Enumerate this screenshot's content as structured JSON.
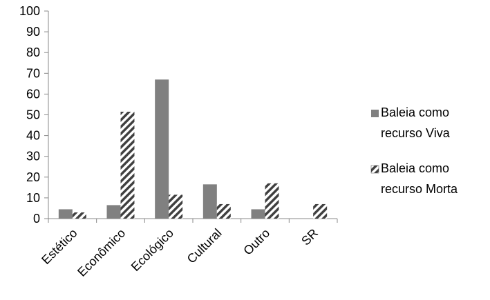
{
  "chart_data": {
    "type": "bar",
    "categories": [
      "Estético",
      "Econômico",
      "Ecológico",
      "Cultural",
      "Outro",
      "SR"
    ],
    "series": [
      {
        "name": "Baleia como recurso Viva",
        "values": [
          4.5,
          6.5,
          67,
          16.5,
          4.5,
          0
        ],
        "color": "#808080",
        "pattern": "solid"
      },
      {
        "name": "Baleia como recurso Morta",
        "values": [
          3,
          51.5,
          11.5,
          7,
          17,
          7
        ],
        "color": "#404040",
        "pattern": "diagonal-hatch"
      }
    ],
    "legend_lines": [
      [
        "Baleia como",
        "recurso Viva"
      ],
      [
        "Baleia como",
        "recurso Morta"
      ]
    ],
    "ylim": [
      0,
      100
    ],
    "yticks": [
      0,
      10,
      20,
      30,
      40,
      50,
      60,
      70,
      80,
      90,
      100
    ],
    "legend_position": "right",
    "grid": false
  }
}
